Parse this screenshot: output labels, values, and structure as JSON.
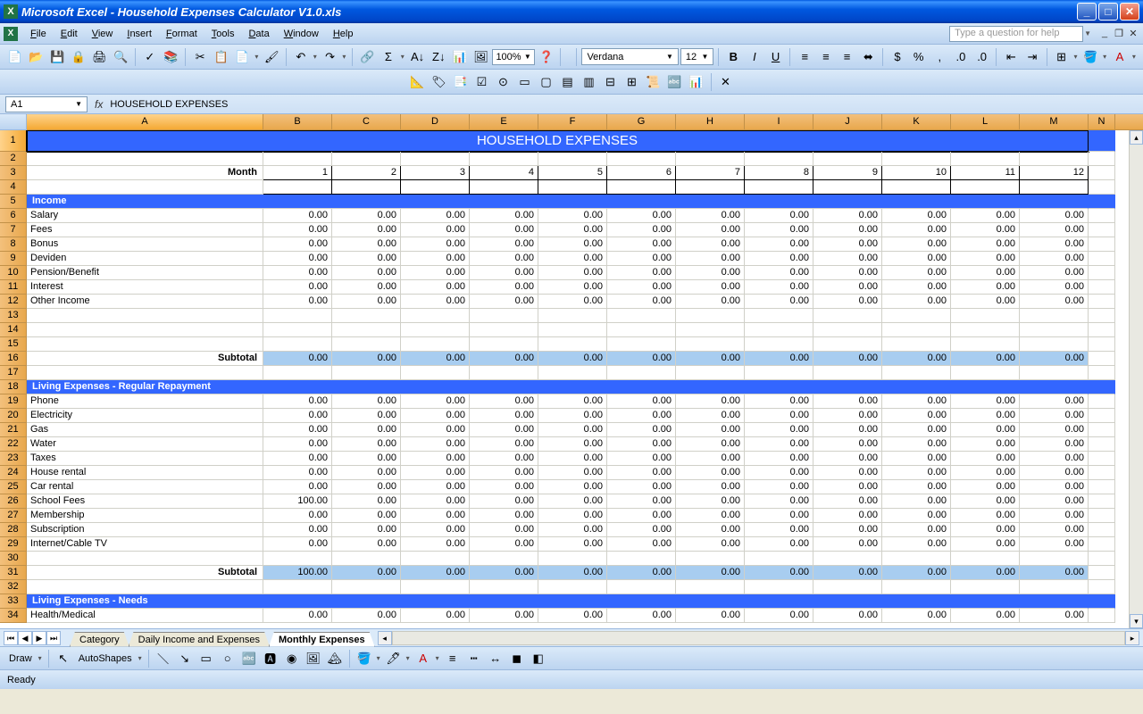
{
  "title": "Microsoft Excel - Household Expenses Calculator V1.0.xls",
  "menus": [
    "File",
    "Edit",
    "View",
    "Insert",
    "Format",
    "Tools",
    "Data",
    "Window",
    "Help"
  ],
  "helpPlaceholder": "Type a question for help",
  "namebox": "A1",
  "formula": "HOUSEHOLD EXPENSES",
  "zoom": "100%",
  "font": "Verdana",
  "fontsize": "12",
  "columns": [
    "A",
    "B",
    "C",
    "D",
    "E",
    "F",
    "G",
    "H",
    "I",
    "J",
    "K",
    "L",
    "M",
    "N"
  ],
  "sheet": {
    "mainTitle": "HOUSEHOLD EXPENSES",
    "monthLabel": "Month",
    "months": [
      1,
      2,
      3,
      4,
      5,
      6,
      7,
      8,
      9,
      10,
      11,
      12
    ],
    "income": {
      "header": "Income",
      "rows": [
        "Salary",
        "Fees",
        "Bonus",
        "Deviden",
        "Pension/Benefit",
        "Interest",
        "Other Income"
      ],
      "subtotalLabel": "Subtotal",
      "subtotal": [
        "0.00",
        "0.00",
        "0.00",
        "0.00",
        "0.00",
        "0.00",
        "0.00",
        "0.00",
        "0.00",
        "0.00",
        "0.00",
        "0.00"
      ]
    },
    "living1": {
      "header": "Living Expenses - Regular Repayment",
      "rows": [
        "Phone",
        "Electricity",
        "Gas",
        "Water",
        "Taxes",
        "House rental",
        "Car rental",
        "School Fees",
        "Membership",
        "Subscription",
        "Internet/Cable TV"
      ],
      "vals": {
        "School Fees": [
          "100.00",
          "0.00",
          "0.00",
          "0.00",
          "0.00",
          "0.00",
          "0.00",
          "0.00",
          "0.00",
          "0.00",
          "0.00",
          "0.00"
        ]
      },
      "subtotalLabel": "Subtotal",
      "subtotal": [
        "100.00",
        "0.00",
        "0.00",
        "0.00",
        "0.00",
        "0.00",
        "0.00",
        "0.00",
        "0.00",
        "0.00",
        "0.00",
        "0.00"
      ]
    },
    "living2": {
      "header": "Living Expenses - Needs",
      "rows": [
        "Health/Medical"
      ]
    }
  },
  "tabs": [
    "Category",
    "Daily Income and Expenses",
    "Monthly Expenses"
  ],
  "activeTab": 2,
  "drawLabel": "Draw",
  "autoShapes": "AutoShapes",
  "status": "Ready",
  "colors": {
    "sectionBg": "#3366ff",
    "subtotalBg": "#a8cdf0",
    "colHdrBg": "#e8a84d"
  }
}
